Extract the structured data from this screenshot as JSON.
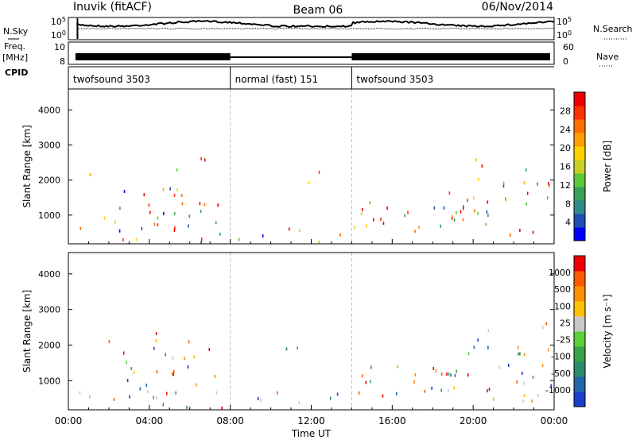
{
  "header": {
    "station": "Inuvik (fitACF)",
    "beam": "Beam 06",
    "date": "06/Nov/2014"
  },
  "labels": {
    "nsky": "N.Sky",
    "nsearch": "N.Search",
    "freq": "Freq.",
    "freq_unit": "[MHz]",
    "nave": "Nave",
    "cpid": "CPID"
  },
  "cpid_segments": [
    {
      "label": "twofsound 3503",
      "start_h": 0,
      "end_h": 8
    },
    {
      "label": "normal (fast) 151",
      "start_h": 8,
      "end_h": 14
    },
    {
      "label": "twofsound 3503",
      "start_h": 14,
      "end_h": 24
    }
  ],
  "nsky_ticks": [
    "10^5",
    "10^0"
  ],
  "nsearch_ticks": [
    "10^5",
    "10^0"
  ],
  "freq_ticks": [
    "10",
    "8"
  ],
  "nave_ticks": [
    "60",
    "0"
  ],
  "chart_data": [
    {
      "type": "heatmap",
      "title": "",
      "xlabel": "",
      "ylabel": "Slant Range [km]",
      "xlim": [
        0,
        24
      ],
      "ylim": [
        180,
        4600
      ],
      "x_ticks": [],
      "y_ticks": [
        "1000",
        "2000",
        "3000",
        "4000"
      ],
      "colorbar": {
        "label": "Power [dB]",
        "ticks": [
          "4",
          "8",
          "12",
          "16",
          "20",
          "24",
          "28"
        ],
        "colors": [
          "#0000ff",
          "#1f4fb0",
          "#2f8a8a",
          "#3aa05a",
          "#5cc83a",
          "#c8d028",
          "#ffd000",
          "#ffa000",
          "#ff7000",
          "#ff3000",
          "#ee0000"
        ]
      }
    },
    {
      "type": "heatmap",
      "title": "",
      "xlabel": "Time UT",
      "ylabel": "Slant Range [km]",
      "xlim": [
        0,
        24
      ],
      "ylim": [
        180,
        4600
      ],
      "x_ticks": [
        "00:00",
        "04:00",
        "08:00",
        "12:00",
        "16:00",
        "20:00",
        "00:00"
      ],
      "y_ticks": [
        "1000",
        "2000",
        "3000",
        "4000"
      ],
      "colorbar": {
        "label": "Velocity [m s⁻¹]",
        "ticks": [
          "1000",
          "500",
          "100",
          "25",
          "-25",
          "-100",
          "-500",
          "-1000"
        ],
        "colors": [
          "#1a3ec8",
          "#2266aa",
          "#2a8a6a",
          "#3aa04a",
          "#5ad03a",
          "#c8c8c8",
          "#ffc000",
          "#ff9000",
          "#ff5a00",
          "#ee0000"
        ]
      }
    }
  ]
}
